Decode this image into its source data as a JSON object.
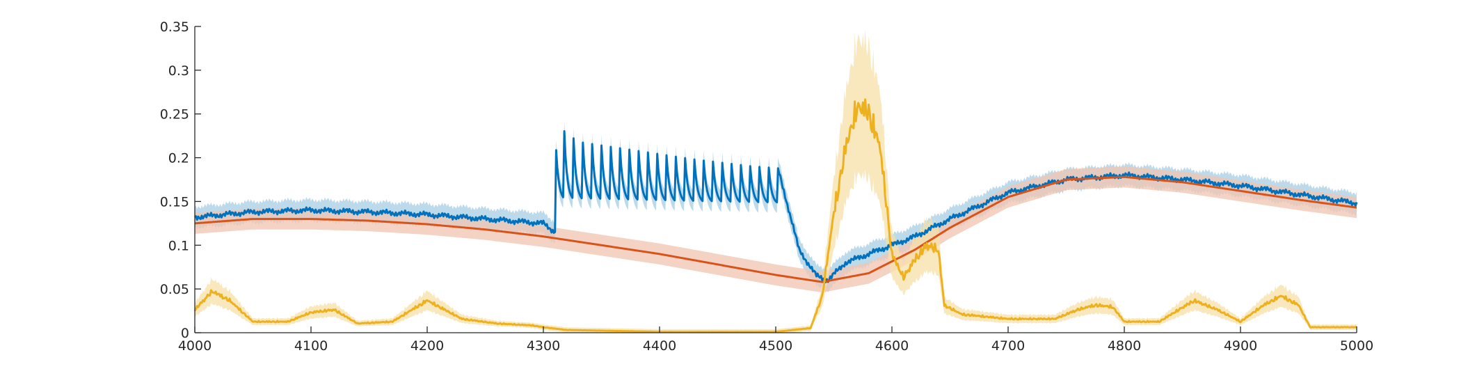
{
  "chart_data": {
    "type": "line",
    "title": "",
    "xlabel": "",
    "ylabel": "",
    "xlim": [
      4000,
      5000
    ],
    "ylim": [
      0,
      0.35
    ],
    "xticks": [
      4000,
      4100,
      4200,
      4300,
      4400,
      4500,
      4600,
      4700,
      4800,
      4900,
      5000
    ],
    "yticks": [
      0,
      0.05,
      0.1,
      0.15,
      0.2,
      0.25,
      0.3,
      0.35
    ],
    "xtick_labels": [
      "4000",
      "4100",
      "4200",
      "4300",
      "4400",
      "4500",
      "4600",
      "4700",
      "4800",
      "4900",
      "5000"
    ],
    "ytick_labels": [
      "0",
      "0.05",
      "0.1",
      "0.15",
      "0.2",
      "0.25",
      "0.3",
      "0.35"
    ],
    "grid": false,
    "legend": "none",
    "colors": {
      "blue": "#0072BD",
      "blue_band": "#A6CEE3",
      "red": "#D95319",
      "red_band": "#F2C4B0",
      "yellow": "#EDB120",
      "yellow_band": "#F7E0A8",
      "axis": "#262626"
    },
    "series": [
      {
        "color": "#0072BD",
        "x": [
          4000,
          4050,
          4100,
          4150,
          4200,
          4250,
          4300,
          4310,
          4310.5,
          4330,
          4380,
          4430,
          4480,
          4502,
          4520,
          4535,
          4545,
          4560,
          4580,
          4600,
          4620,
          4650,
          4700,
          4750,
          4800,
          4850,
          4900,
          4950,
          5000
        ],
        "y": [
          0.132,
          0.138,
          0.14,
          0.138,
          0.135,
          0.13,
          0.125,
          0.115,
          0.238,
          0.218,
          0.208,
          0.198,
          0.19,
          0.188,
          0.095,
          0.065,
          0.06,
          0.08,
          0.09,
          0.1,
          0.11,
          0.13,
          0.16,
          0.175,
          0.18,
          0.175,
          0.168,
          0.158,
          0.148
        ],
        "oscillation": {
          "x_start": 4310,
          "x_end": 4502,
          "cycles": 24,
          "low": 0.15,
          "decay_to": 0.138
        }
      },
      {
        "color": "#D95319",
        "x": [
          4000,
          4050,
          4100,
          4150,
          4200,
          4250,
          4300,
          4350,
          4400,
          4450,
          4500,
          4540,
          4580,
          4620,
          4650,
          4700,
          4750,
          4800,
          4850,
          4900,
          4950,
          5000
        ],
        "y": [
          0.125,
          0.13,
          0.13,
          0.128,
          0.124,
          0.118,
          0.11,
          0.1,
          0.09,
          0.078,
          0.066,
          0.058,
          0.068,
          0.095,
          0.12,
          0.155,
          0.175,
          0.178,
          0.172,
          0.162,
          0.152,
          0.143
        ]
      },
      {
        "color": "#EDB120",
        "x": [
          4000,
          4015,
          4030,
          4050,
          4080,
          4100,
          4120,
          4140,
          4170,
          4200,
          4230,
          4260,
          4290,
          4300,
          4320,
          4400,
          4500,
          4530,
          4540,
          4550,
          4560,
          4570,
          4580,
          4590,
          4600,
          4610,
          4620,
          4630,
          4640,
          4645,
          4660,
          4700,
          4740,
          4760,
          4775,
          4790,
          4800,
          4830,
          4860,
          4880,
          4900,
          4920,
          4935,
          4950,
          4960,
          5000
        ],
        "y": [
          0.025,
          0.045,
          0.035,
          0.012,
          0.012,
          0.022,
          0.025,
          0.01,
          0.012,
          0.035,
          0.015,
          0.01,
          0.008,
          0.006,
          0.003,
          0.001,
          0.001,
          0.005,
          0.04,
          0.13,
          0.2,
          0.245,
          0.24,
          0.2,
          0.085,
          0.06,
          0.08,
          0.095,
          0.09,
          0.03,
          0.02,
          0.015,
          0.015,
          0.025,
          0.03,
          0.028,
          0.012,
          0.012,
          0.035,
          0.025,
          0.012,
          0.03,
          0.04,
          0.03,
          0.006,
          0.006
        ]
      }
    ]
  }
}
